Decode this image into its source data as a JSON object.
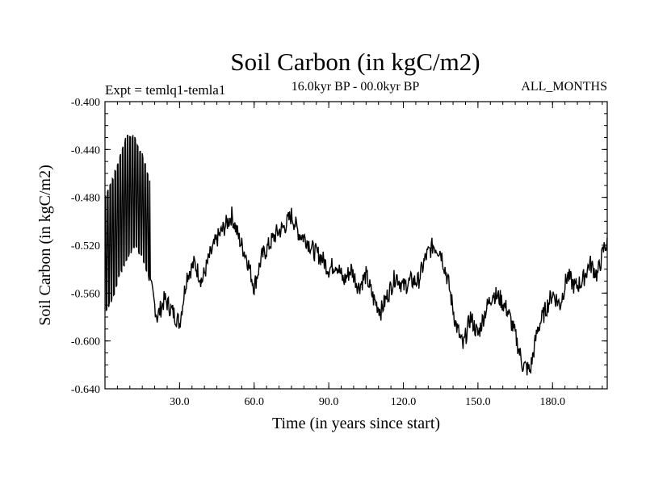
{
  "chart_data": {
    "type": "line",
    "title": "Soil Carbon (in kgC/m2)",
    "subtitle": "16.0kyr BP - 00.0kyr BP",
    "experiment_label": "Expt = temlq1-temla1",
    "period_label": "ALL_MONTHS",
    "xlabel": "Time (in years since start)",
    "ylabel": "Soil Carbon (in kgC/m2)",
    "xlim": [
      0,
      202
    ],
    "ylim": [
      -0.64,
      -0.4
    ],
    "x_ticks": [
      30,
      60,
      90,
      120,
      150,
      180
    ],
    "x_tick_labels": [
      "30.0",
      "60.0",
      "90.0",
      "120.0",
      "150.0",
      "180.0"
    ],
    "y_ticks": [
      -0.4,
      -0.44,
      -0.48,
      -0.52,
      -0.56,
      -0.6,
      -0.64
    ],
    "y_tick_labels": [
      "-0.400",
      "-0.440",
      "-0.480",
      "-0.520",
      "-0.560",
      "-0.600",
      "-0.640"
    ],
    "series": [
      {
        "name": "temlq1-temla1",
        "color": "#000000",
        "x": [
          0,
          3,
          6,
          9,
          12,
          15,
          18,
          21,
          24,
          27,
          30,
          33,
          36,
          39,
          42,
          45,
          48,
          51,
          54,
          57,
          60,
          63,
          66,
          69,
          72,
          75,
          78,
          81,
          84,
          87,
          90,
          93,
          96,
          99,
          102,
          105,
          108,
          111,
          114,
          117,
          120,
          123,
          126,
          129,
          132,
          135,
          138,
          141,
          144,
          147,
          150,
          153,
          156,
          159,
          162,
          165,
          168,
          171,
          174,
          177,
          180,
          183,
          186,
          189,
          192,
          195,
          198,
          201
        ],
        "values": [
          -0.575,
          -0.56,
          -0.545,
          -0.54,
          -0.53,
          -0.535,
          -0.55,
          -0.58,
          -0.565,
          -0.575,
          -0.585,
          -0.545,
          -0.535,
          -0.55,
          -0.53,
          -0.515,
          -0.505,
          -0.495,
          -0.515,
          -0.53,
          -0.555,
          -0.53,
          -0.52,
          -0.51,
          -0.505,
          -0.495,
          -0.51,
          -0.515,
          -0.525,
          -0.53,
          -0.54,
          -0.535,
          -0.55,
          -0.54,
          -0.555,
          -0.545,
          -0.565,
          -0.575,
          -0.56,
          -0.545,
          -0.555,
          -0.55,
          -0.55,
          -0.53,
          -0.52,
          -0.525,
          -0.55,
          -0.585,
          -0.605,
          -0.58,
          -0.595,
          -0.575,
          -0.56,
          -0.565,
          -0.575,
          -0.595,
          -0.62,
          -0.625,
          -0.59,
          -0.575,
          -0.56,
          -0.57,
          -0.545,
          -0.555,
          -0.55,
          -0.535,
          -0.545,
          -0.52
        ],
        "early_oscillation": {
          "x_range": [
            0,
            18
          ],
          "upper_envelope": [
            -0.48,
            -0.465,
            -0.445,
            -0.428,
            -0.43,
            -0.445,
            -0.465
          ],
          "lower_envelope": [
            -0.575,
            -0.565,
            -0.545,
            -0.53,
            -0.52,
            -0.53,
            -0.55
          ]
        }
      }
    ]
  }
}
